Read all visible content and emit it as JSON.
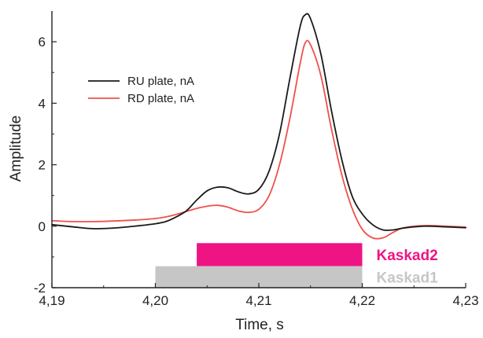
{
  "chart_data": {
    "type": "line",
    "title": "",
    "xlabel": "Time, s",
    "ylabel": "Amplitude",
    "xlim": [
      4.19,
      4.23
    ],
    "ylim": [
      -2,
      7
    ],
    "x_ticks": [
      4.19,
      4.2,
      4.21,
      4.22,
      4.23
    ],
    "x_tick_labels": [
      "4,19",
      "4,20",
      "4,21",
      "4,22",
      "4,23"
    ],
    "y_ticks": [
      -2,
      0,
      2,
      4,
      6
    ],
    "y_tick_labels": [
      "-2",
      "0",
      "2",
      "4",
      "6"
    ],
    "grid": false,
    "legend_position": "top-left",
    "series": [
      {
        "name": "RU plate, nA",
        "color": "#1a1a1a",
        "points": [
          [
            4.19,
            0.05
          ],
          [
            4.192,
            -0.02
          ],
          [
            4.194,
            -0.08
          ],
          [
            4.196,
            -0.06
          ],
          [
            4.198,
            0.0
          ],
          [
            4.2,
            0.08
          ],
          [
            4.201,
            0.15
          ],
          [
            4.202,
            0.3
          ],
          [
            4.203,
            0.5
          ],
          [
            4.204,
            0.85
          ],
          [
            4.205,
            1.15
          ],
          [
            4.206,
            1.27
          ],
          [
            4.207,
            1.25
          ],
          [
            4.208,
            1.12
          ],
          [
            4.209,
            1.05
          ],
          [
            4.21,
            1.2
          ],
          [
            4.211,
            1.8
          ],
          [
            4.212,
            3.0
          ],
          [
            4.213,
            4.8
          ],
          [
            4.214,
            6.5
          ],
          [
            4.2145,
            6.88
          ],
          [
            4.215,
            6.75
          ],
          [
            4.216,
            5.6
          ],
          [
            4.217,
            3.8
          ],
          [
            4.218,
            2.2
          ],
          [
            4.219,
            1.0
          ],
          [
            4.22,
            0.4
          ],
          [
            4.221,
            0.05
          ],
          [
            4.222,
            -0.12
          ],
          [
            4.223,
            -0.12
          ],
          [
            4.224,
            -0.06
          ],
          [
            4.226,
            0.0
          ],
          [
            4.228,
            -0.02
          ],
          [
            4.23,
            -0.05
          ]
        ]
      },
      {
        "name": "RD plate, nA",
        "color": "#f0504a",
        "points": [
          [
            4.19,
            0.18
          ],
          [
            4.192,
            0.15
          ],
          [
            4.194,
            0.15
          ],
          [
            4.196,
            0.17
          ],
          [
            4.198,
            0.2
          ],
          [
            4.2,
            0.25
          ],
          [
            4.201,
            0.3
          ],
          [
            4.202,
            0.38
          ],
          [
            4.203,
            0.48
          ],
          [
            4.204,
            0.58
          ],
          [
            4.205,
            0.65
          ],
          [
            4.206,
            0.68
          ],
          [
            4.207,
            0.62
          ],
          [
            4.208,
            0.5
          ],
          [
            4.209,
            0.45
          ],
          [
            4.21,
            0.55
          ],
          [
            4.211,
            1.0
          ],
          [
            4.212,
            2.0
          ],
          [
            4.213,
            3.5
          ],
          [
            4.214,
            5.3
          ],
          [
            4.2145,
            5.97
          ],
          [
            4.215,
            5.9
          ],
          [
            4.216,
            4.9
          ],
          [
            4.217,
            3.2
          ],
          [
            4.218,
            1.7
          ],
          [
            4.219,
            0.6
          ],
          [
            4.22,
            -0.1
          ],
          [
            4.221,
            -0.38
          ],
          [
            4.222,
            -0.38
          ],
          [
            4.223,
            -0.2
          ],
          [
            4.224,
            -0.05
          ],
          [
            4.226,
            0.02
          ],
          [
            4.228,
            0.0
          ],
          [
            4.23,
            -0.03
          ]
        ]
      }
    ],
    "bars": [
      {
        "label": "Kaskad2",
        "color": "#ee1483",
        "x_start": 4.204,
        "x_end": 4.22,
        "y_top": -0.55,
        "y_bottom": -1.3
      },
      {
        "label": "Kaskad1",
        "color": "#c6c6c6",
        "x_start": 4.2,
        "x_end": 4.22,
        "y_top": -1.3,
        "y_bottom": -2.0
      }
    ]
  }
}
